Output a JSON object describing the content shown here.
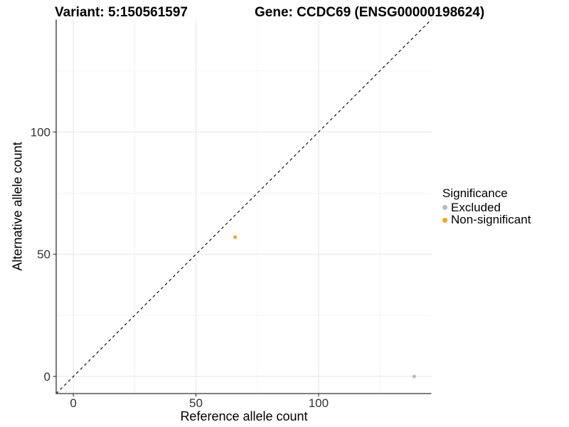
{
  "chart_data": {
    "type": "scatter",
    "titles": {
      "left": "Variant: 5:150561597",
      "right": "Gene: CCDC69 (ENSG00000198624)"
    },
    "xlabel": "Reference allele count",
    "ylabel": "Alternative allele count",
    "xlim": [
      -7,
      146
    ],
    "ylim": [
      -7,
      146
    ],
    "xticks": [
      0,
      50,
      100
    ],
    "yticks": [
      0,
      50,
      100
    ],
    "xticks_minor": [
      25,
      75,
      125
    ],
    "yticks_minor": [
      25,
      75,
      125
    ],
    "grid": {
      "major": true,
      "minor": true
    },
    "reference_line": {
      "type": "identity",
      "equation": "y = x",
      "style": "dashed",
      "color": "#111111"
    },
    "series": [
      {
        "name": "Excluded",
        "color": "#BABABA",
        "points": [
          {
            "x": 139,
            "y": 0
          }
        ]
      },
      {
        "name": "Non-significant",
        "color": "#F9A020",
        "points": [
          {
            "x": 66,
            "y": 57
          }
        ]
      }
    ],
    "legend": {
      "title": "Significance",
      "position": "right",
      "items": [
        {
          "label": "Excluded",
          "color": "#BABABA"
        },
        {
          "label": "Non-significant",
          "color": "#F9A020"
        }
      ]
    },
    "style_colors": {
      "grid_major": "#E8E8E8",
      "grid_minor": "#F3F3F3",
      "axis_line": "#333333",
      "tick_label": "#333333"
    }
  }
}
